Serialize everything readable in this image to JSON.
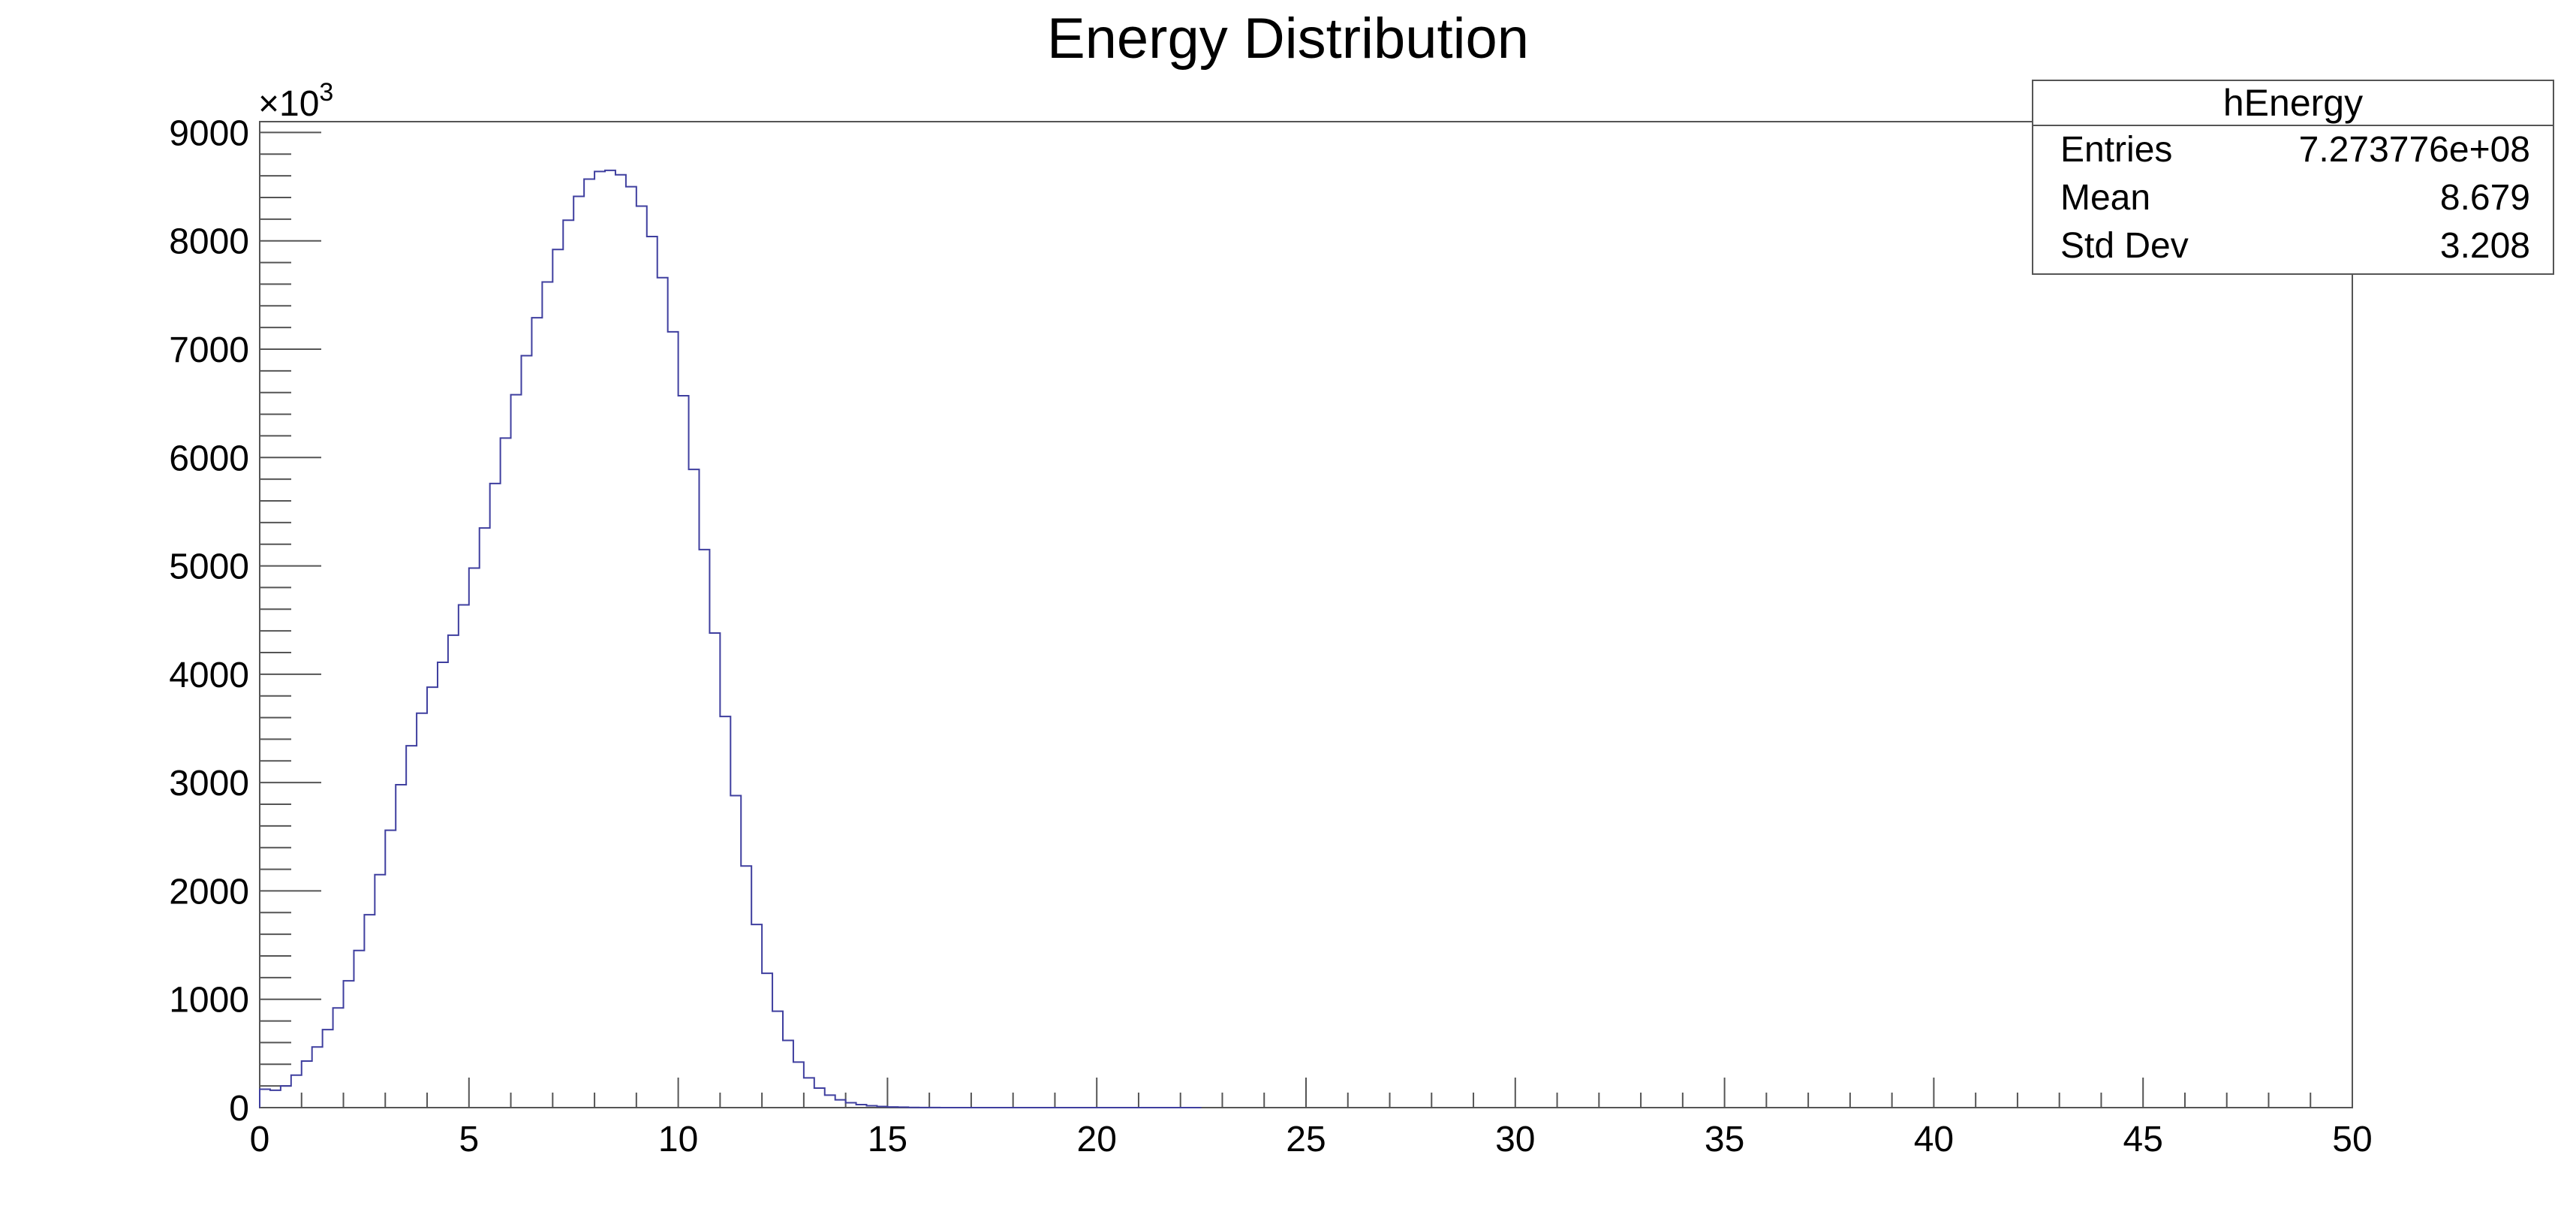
{
  "page": {
    "background": "#ffffff"
  },
  "chart_data": {
    "type": "histogram",
    "title": "Energy Distribution",
    "xlabel": "",
    "ylabel": "",
    "xlim": [
      0,
      50
    ],
    "ylim": [
      0,
      9100
    ],
    "y_multiplier_label": "×10",
    "y_multiplier_exponent": "3",
    "x_ticks": [
      0,
      5,
      10,
      15,
      20,
      25,
      30,
      35,
      40,
      45,
      50
    ],
    "y_ticks": [
      0,
      1000,
      2000,
      3000,
      4000,
      5000,
      6000,
      7000,
      8000,
      9000
    ],
    "grid": false,
    "line_color": "#3f3f9f",
    "bin_width": 0.25,
    "bin_start": 0,
    "series": [
      {
        "values": [
          170,
          160,
          200,
          300,
          430,
          560,
          720,
          920,
          1170,
          1450,
          1780,
          2150,
          2560,
          2980,
          3340,
          3640,
          3880,
          4110,
          4360,
          4640,
          4980,
          5350,
          5760,
          6180,
          6580,
          6940,
          7290,
          7620,
          7920,
          8190,
          8410,
          8570,
          8640,
          8650,
          8610,
          8500,
          8320,
          8040,
          7660,
          7160,
          6570,
          5890,
          5150,
          4380,
          3610,
          2880,
          2230,
          1690,
          1240,
          890,
          620,
          420,
          275,
          180,
          115,
          72,
          45,
          28,
          17,
          10,
          6,
          4,
          2,
          1,
          1,
          0,
          0,
          0,
          0,
          0,
          0,
          0,
          0,
          0,
          0,
          0,
          0,
          0,
          0,
          0,
          0,
          0,
          0,
          0,
          0,
          0,
          0,
          0,
          0,
          0
        ]
      }
    ]
  },
  "stats": {
    "title": "hEnergy",
    "rows": [
      {
        "label": "Entries",
        "value": "7.273776e+08"
      },
      {
        "label": "Mean",
        "value": "8.679"
      },
      {
        "label": "Std Dev",
        "value": "3.208"
      }
    ]
  }
}
